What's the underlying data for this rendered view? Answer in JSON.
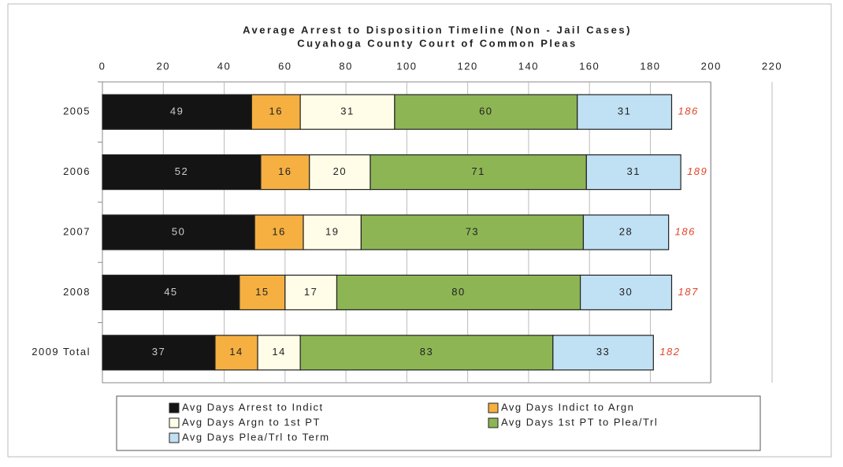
{
  "chart_data": {
    "type": "stacked-bar-horizontal",
    "title": "Average Arrest to Disposition Timeline (Non - Jail Cases)",
    "subtitle": "Cuyahoga County Court of Common Pleas",
    "categories": [
      "2005",
      "2006",
      "2007",
      "2008",
      "2009 Total"
    ],
    "series": [
      {
        "name": "Avg Days Arrest to Indict",
        "color": "#141414",
        "values": [
          49,
          52,
          50,
          45,
          37
        ]
      },
      {
        "name": "Avg Days Indict to Argn",
        "color": "#f5b041",
        "values": [
          16,
          16,
          16,
          15,
          14
        ]
      },
      {
        "name": "Avg Days Argn to 1st PT",
        "color": "#fffde8",
        "values": [
          31,
          20,
          19,
          17,
          14
        ]
      },
      {
        "name": "Avg Days 1st PT to Plea/Trl",
        "color": "#8db554",
        "values": [
          60,
          71,
          73,
          80,
          83
        ]
      },
      {
        "name": "Avg Days Plea/Trl to Term",
        "color": "#c0e0f4",
        "values": [
          31,
          31,
          28,
          30,
          33
        ]
      }
    ],
    "totals": [
      186,
      189,
      186,
      187,
      182
    ],
    "xlim": [
      0,
      220
    ],
    "xticks": [
      0,
      20,
      40,
      60,
      80,
      100,
      120,
      140,
      160,
      180,
      200,
      220
    ],
    "grid": true
  }
}
